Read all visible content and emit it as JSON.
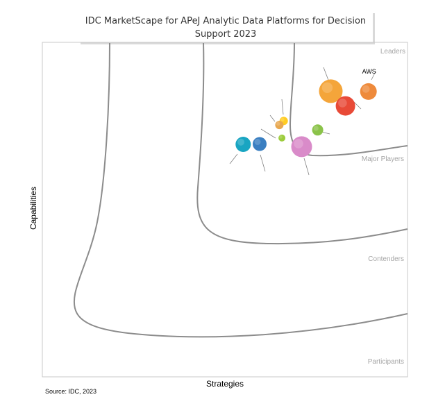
{
  "chart_data": {
    "type": "scatter",
    "title_line1": "IDC MarketScape for APeJ Analytic Data Platforms for Decision",
    "title_line2": "Support 2023",
    "xlabel": "Strategies",
    "ylabel": "Capabilities",
    "xlim": [
      0,
      1
    ],
    "ylim": [
      0,
      1
    ],
    "source": "Source: IDC, 2023",
    "segments": [
      "Leaders",
      "Major Players",
      "Contenders",
      "Participants"
    ],
    "points": [
      {
        "x": 0.79,
        "y": 0.854,
        "r": 17,
        "color": "#F4A53A",
        "label": ""
      },
      {
        "x": 0.83,
        "y": 0.81,
        "r": 14,
        "color": "#E84A37",
        "label": ""
      },
      {
        "x": 0.893,
        "y": 0.853,
        "r": 12,
        "color": "#EE8A3B",
        "label": "AWS"
      },
      {
        "x": 0.754,
        "y": 0.738,
        "r": 8,
        "color": "#8BC34A",
        "label": ""
      },
      {
        "x": 0.661,
        "y": 0.765,
        "r": 6,
        "color": "#FFCC22",
        "label": ""
      },
      {
        "x": 0.649,
        "y": 0.753,
        "r": 6,
        "color": "#E8A850",
        "label": ""
      },
      {
        "x": 0.656,
        "y": 0.714,
        "r": 5,
        "color": "#9CCC3C",
        "label": ""
      },
      {
        "x": 0.71,
        "y": 0.688,
        "r": 15,
        "color": "#D98BC9",
        "label": ""
      },
      {
        "x": 0.55,
        "y": 0.695,
        "r": 11,
        "color": "#19A5C2",
        "label": ""
      },
      {
        "x": 0.595,
        "y": 0.696,
        "r": 10,
        "color": "#3A7FC1",
        "label": ""
      }
    ]
  }
}
